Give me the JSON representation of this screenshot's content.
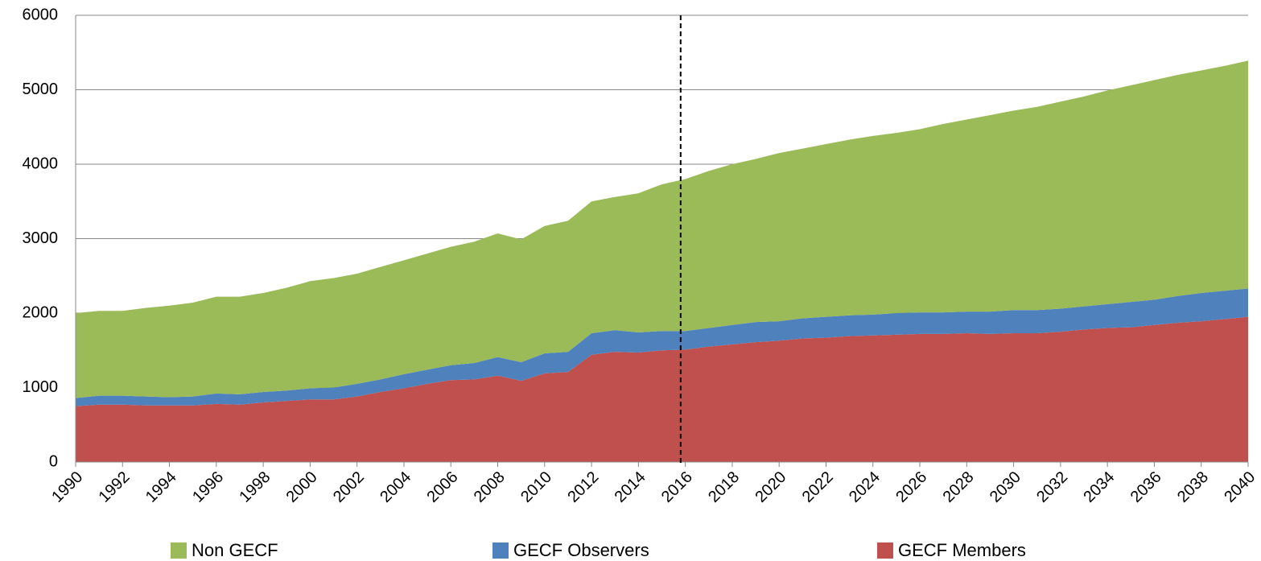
{
  "chart_data": {
    "type": "stacked_area",
    "x": [
      1990,
      1991,
      1992,
      1993,
      1994,
      1995,
      1996,
      1997,
      1998,
      1999,
      2000,
      2001,
      2002,
      2003,
      2004,
      2005,
      2006,
      2007,
      2008,
      2009,
      2010,
      2011,
      2012,
      2013,
      2014,
      2015,
      2016,
      2017,
      2018,
      2019,
      2020,
      2021,
      2022,
      2023,
      2024,
      2025,
      2026,
      2027,
      2028,
      2029,
      2030,
      2031,
      2032,
      2033,
      2034,
      2035,
      2036,
      2037,
      2038,
      2039,
      2040
    ],
    "series": [
      {
        "name": "Non GECF",
        "color": "#9bbb59",
        "values": [
          1140,
          1140,
          1140,
          1190,
          1230,
          1260,
          1300,
          1310,
          1330,
          1380,
          1440,
          1470,
          1480,
          1510,
          1530,
          1560,
          1590,
          1630,
          1660,
          1650,
          1710,
          1760,
          1770,
          1790,
          1870,
          1970,
          2040,
          2110,
          2160,
          2190,
          2260,
          2280,
          2320,
          2360,
          2400,
          2420,
          2460,
          2530,
          2580,
          2640,
          2680,
          2730,
          2780,
          2820,
          2870,
          2910,
          2950,
          2970,
          2990,
          3020,
          3060
        ]
      },
      {
        "name": "GECF Observers",
        "color": "#4f81bd",
        "values": [
          110,
          120,
          120,
          120,
          110,
          120,
          140,
          140,
          140,
          140,
          150,
          160,
          170,
          170,
          190,
          190,
          200,
          220,
          250,
          250,
          270,
          270,
          290,
          290,
          270,
          260,
          250,
          250,
          260,
          270,
          260,
          270,
          280,
          280,
          280,
          290,
          290,
          290,
          290,
          300,
          310,
          310,
          310,
          310,
          320,
          340,
          340,
          360,
          380,
          380,
          380
        ]
      },
      {
        "name": "GECF Members",
        "color": "#c0504d",
        "values": [
          750,
          770,
          770,
          760,
          760,
          760,
          780,
          770,
          800,
          820,
          840,
          840,
          880,
          940,
          990,
          1050,
          1100,
          1110,
          1160,
          1090,
          1190,
          1210,
          1440,
          1480,
          1470,
          1500,
          1510,
          1550,
          1580,
          1610,
          1630,
          1660,
          1670,
          1690,
          1700,
          1710,
          1720,
          1720,
          1730,
          1720,
          1730,
          1730,
          1750,
          1780,
          1800,
          1810,
          1840,
          1870,
          1890,
          1920,
          1950
        ]
      }
    ],
    "xlim": [
      1990,
      2040
    ],
    "xticks": [
      1990,
      1992,
      1994,
      1996,
      1998,
      2000,
      2002,
      2004,
      2006,
      2008,
      2010,
      2012,
      2014,
      2016,
      2018,
      2020,
      2022,
      2024,
      2026,
      2028,
      2030,
      2032,
      2034,
      2036,
      2038,
      2040
    ],
    "ylim": [
      0,
      6000
    ],
    "yticks": [
      0,
      1000,
      2000,
      3000,
      4000,
      5000,
      6000
    ],
    "grid": true,
    "vline_x": 2015.8,
    "legend": "bottom"
  }
}
